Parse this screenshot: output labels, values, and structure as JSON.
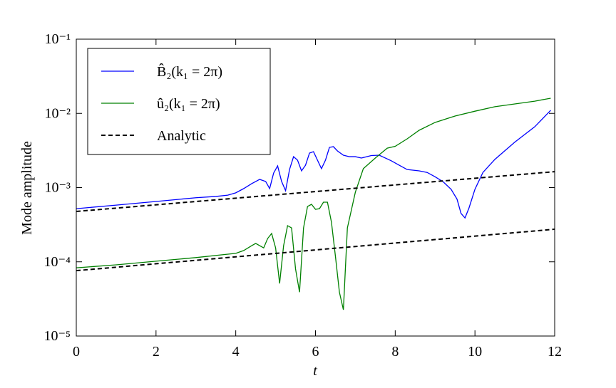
{
  "chart_data": {
    "type": "line",
    "xlabel": "t",
    "ylabel": "Mode amplitude",
    "xlim": [
      0,
      12
    ],
    "ylim": [
      1e-05,
      0.1
    ],
    "log_y": true,
    "xticks": [
      0,
      2,
      4,
      6,
      8,
      10,
      12
    ],
    "yticks": [
      {
        "value": 1e-05,
        "label": "10⁻⁵"
      },
      {
        "value": 0.0001,
        "label": "10⁻⁴"
      },
      {
        "value": 0.001,
        "label": "10⁻³"
      },
      {
        "value": 0.01,
        "label": "10⁻²"
      },
      {
        "value": 0.1,
        "label": "10⁻¹"
      }
    ],
    "legend": "upper left",
    "series": [
      {
        "name": "B̂₂(k₁ = 2π)",
        "color": "#0000ff",
        "dash": false,
        "x": [
          0,
          1,
          2,
          3,
          3.5,
          3.8,
          4.0,
          4.2,
          4.4,
          4.6,
          4.75,
          4.85,
          4.95,
          5.05,
          5.15,
          5.25,
          5.35,
          5.45,
          5.55,
          5.65,
          5.75,
          5.85,
          5.95,
          6.05,
          6.15,
          6.25,
          6.35,
          6.45,
          6.55,
          6.7,
          6.85,
          7.0,
          7.15,
          7.4,
          7.6,
          7.9,
          8.1,
          8.3,
          8.6,
          8.8,
          9.0,
          9.2,
          9.4,
          9.55,
          9.65,
          9.75,
          9.85,
          10.0,
          10.2,
          10.5,
          11.0,
          11.5,
          11.9
        ],
        "values": [
          0.00052,
          0.00058,
          0.00065,
          0.00073,
          0.00076,
          0.00079,
          0.00085,
          0.00097,
          0.00113,
          0.00129,
          0.00121,
          0.00097,
          0.00157,
          0.00196,
          0.00121,
          0.00091,
          0.00176,
          0.00261,
          0.00234,
          0.00168,
          0.002,
          0.00292,
          0.00305,
          0.00234,
          0.0018,
          0.00234,
          0.00348,
          0.00356,
          0.00312,
          0.00273,
          0.00261,
          0.00261,
          0.0025,
          0.0027,
          0.00273,
          0.0023,
          0.002,
          0.00175,
          0.00168,
          0.0016,
          0.0014,
          0.0012,
          0.00095,
          0.0007,
          0.00045,
          0.00039,
          0.00053,
          0.00095,
          0.0016,
          0.0024,
          0.0041,
          0.0066,
          0.011
        ]
      },
      {
        "name": "û₂(k₁ = 2π)",
        "color": "#008000",
        "dash": false,
        "x": [
          0,
          1,
          2,
          3,
          3.7,
          4.0,
          4.2,
          4.4,
          4.5,
          4.6,
          4.7,
          4.8,
          4.9,
          5.0,
          5.1,
          5.2,
          5.3,
          5.4,
          5.5,
          5.6,
          5.7,
          5.8,
          5.9,
          6.0,
          6.1,
          6.2,
          6.3,
          6.4,
          6.5,
          6.6,
          6.7,
          6.8,
          7.0,
          7.2,
          7.5,
          7.8,
          8.0,
          8.3,
          8.6,
          9.0,
          9.5,
          10.0,
          10.5,
          11.0,
          11.5,
          11.9
        ],
        "values": [
          8.3e-05,
          9.1e-05,
          0.000102,
          0.000114,
          0.000125,
          0.00013,
          0.000142,
          0.000165,
          0.000177,
          0.000165,
          0.000154,
          0.000206,
          0.000241,
          0.000154,
          5.1e-05,
          0.000165,
          0.000307,
          0.000286,
          8e-05,
          3.9e-05,
          0.000286,
          0.000557,
          0.000595,
          0.00051,
          0.00052,
          0.000636,
          0.000636,
          0.000343,
          0.000119,
          3.9e-05,
          2.26e-05,
          0.000286,
          0.000867,
          0.0018,
          0.0025,
          0.0034,
          0.0036,
          0.00454,
          0.00592,
          0.00755,
          0.0092,
          0.0107,
          0.0123,
          0.0134,
          0.0146,
          0.016
        ]
      },
      {
        "name": "Analytic",
        "color": "#000000",
        "dash": true,
        "x": [
          0,
          12
        ],
        "values": [
          0.000477,
          0.00164
        ]
      },
      {
        "color": "#000000",
        "dash": true,
        "x": [
          0,
          12
        ],
        "values": [
          7.6e-05,
          0.000275
        ]
      }
    ]
  }
}
